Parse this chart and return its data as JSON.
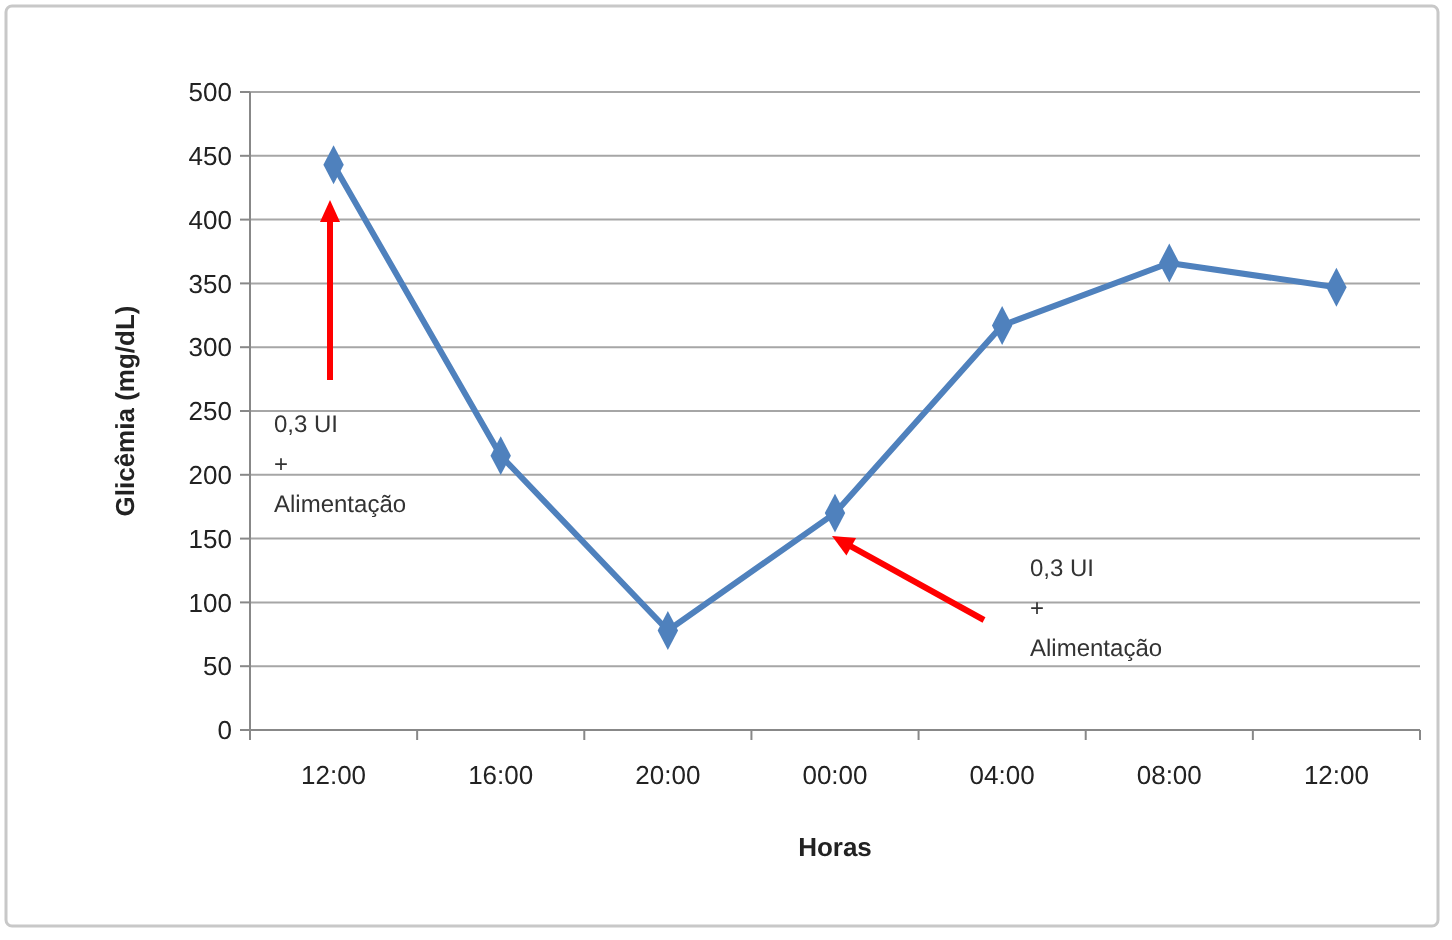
{
  "chart_data": {
    "type": "line",
    "xlabel": "Horas",
    "ylabel": "Glicêmia (mg/dL)",
    "categories": [
      "12:00",
      "16:00",
      "20:00",
      "00:00",
      "04:00",
      "08:00",
      "12:00"
    ],
    "series": [
      {
        "color": "#4f81bd",
        "values": [
          443,
          215,
          78,
          170,
          317,
          366,
          347
        ]
      }
    ],
    "ylim": [
      0,
      500
    ],
    "yticks": [
      0,
      50,
      100,
      150,
      200,
      250,
      300,
      350,
      400,
      450,
      500
    ],
    "grid": "y",
    "marker": "diamond",
    "annotations": [
      "0,3 UI\n+\nAlimentação",
      "0,3 UI\n+\nAlimentação"
    ]
  }
}
